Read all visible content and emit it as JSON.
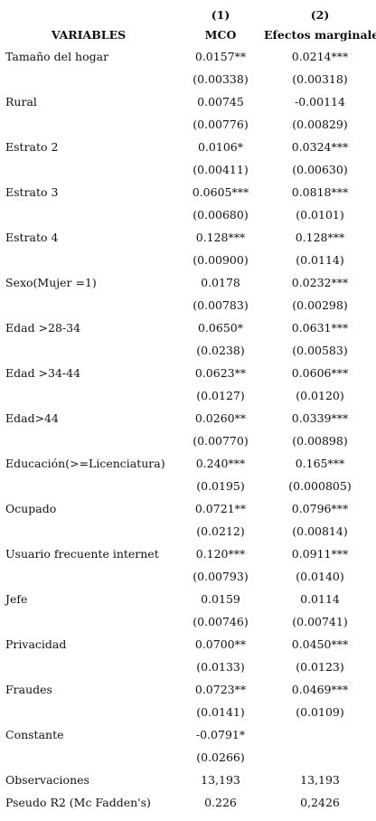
{
  "header": {
    "col1_number": "(1)",
    "col2_number": "(2)",
    "variables_label": "VARIABLES",
    "col1_label": "MCO",
    "col2_label": "Efectos marginales"
  },
  "rows": [
    {
      "label": "Tamaño del hogar",
      "c1": "0.0157**",
      "c2": "0.0214***"
    },
    {
      "label": "",
      "c1": "(0.00338)",
      "c2": "(0.00318)"
    },
    {
      "label": "Rural",
      "c1": "0.00745",
      "c2": "-0.00114"
    },
    {
      "label": "",
      "c1": "(0.00776)",
      "c2": "(0.00829)"
    },
    {
      "label": "Estrato 2",
      "c1": "0.0106*",
      "c2": "0.0324***"
    },
    {
      "label": "",
      "c1": "(0.00411)",
      "c2": "(0.00630)"
    },
    {
      "label": "Estrato 3",
      "c1": "0.0605***",
      "c2": "0.0818***"
    },
    {
      "label": "",
      "c1": "(0.00680)",
      "c2": "(0.0101)"
    },
    {
      "label": "Estrato 4",
      "c1": "0.128***",
      "c2": "0.128***"
    },
    {
      "label": "",
      "c1": "(0.00900)",
      "c2": "(0.0114)"
    },
    {
      "label": "Sexo(Mujer =1)",
      "c1": "0.0178",
      "c2": "0.0232***"
    },
    {
      "label": "",
      "c1": "(0.00783)",
      "c2": "(0.00298)"
    },
    {
      "label": "Edad >28-34",
      "c1": "0.0650*",
      "c2": "0.0631***"
    },
    {
      "label": "",
      "c1": "(0.0238)",
      "c2": "(0.00583)"
    },
    {
      "label": "Edad >34-44",
      "c1": "0.0623**",
      "c2": "0.0606***"
    },
    {
      "label": "",
      "c1": "(0.0127)",
      "c2": "(0.0120)"
    },
    {
      "label": "Edad>44",
      "c1": "0.0260**",
      "c2": "0.0339***"
    },
    {
      "label": "",
      "c1": "(0.00770)",
      "c2": "(0.00898)"
    },
    {
      "label": "Educación(>=Licenciatura)",
      "c1": "0.240***",
      "c2": "0.165***"
    },
    {
      "label": "",
      "c1": "(0.0195)",
      "c2": "(0.000805)"
    },
    {
      "label": "Ocupado",
      "c1": "0.0721**",
      "c2": "0.0796***"
    },
    {
      "label": "",
      "c1": "(0.0212)",
      "c2": "(0.00814)"
    },
    {
      "label": "Usuario frecuente internet",
      "c1": "0.120***",
      "c2": "0.0911***"
    },
    {
      "label": "",
      "c1": "(0.00793)",
      "c2": "(0.0140)"
    },
    {
      "label": "Jefe",
      "c1": "0.0159",
      "c2": "0.0114"
    },
    {
      "label": "",
      "c1": "(0.00746)",
      "c2": "(0.00741)"
    },
    {
      "label": "Privacidad",
      "c1": "0.0700**",
      "c2": "0.0450***"
    },
    {
      "label": "",
      "c1": "(0.0133)",
      "c2": "(0.0123)"
    },
    {
      "label": "Fraudes",
      "c1": "0.0723**",
      "c2": "0.0469***"
    },
    {
      "label": "",
      "c1": "(0.0141)",
      "c2": "(0.0109)"
    },
    {
      "label": "Constante",
      "c1": "-0.0791*",
      "c2": ""
    },
    {
      "label": "",
      "c1": "(0.0266)",
      "c2": ""
    },
    {
      "label": "Observaciones",
      "c1": "13,193",
      "c2": "13,193"
    },
    {
      "label": "Pseudo R2 (Mc Fadden's)",
      "c1": "0.226",
      "c2": "0,2426"
    }
  ]
}
